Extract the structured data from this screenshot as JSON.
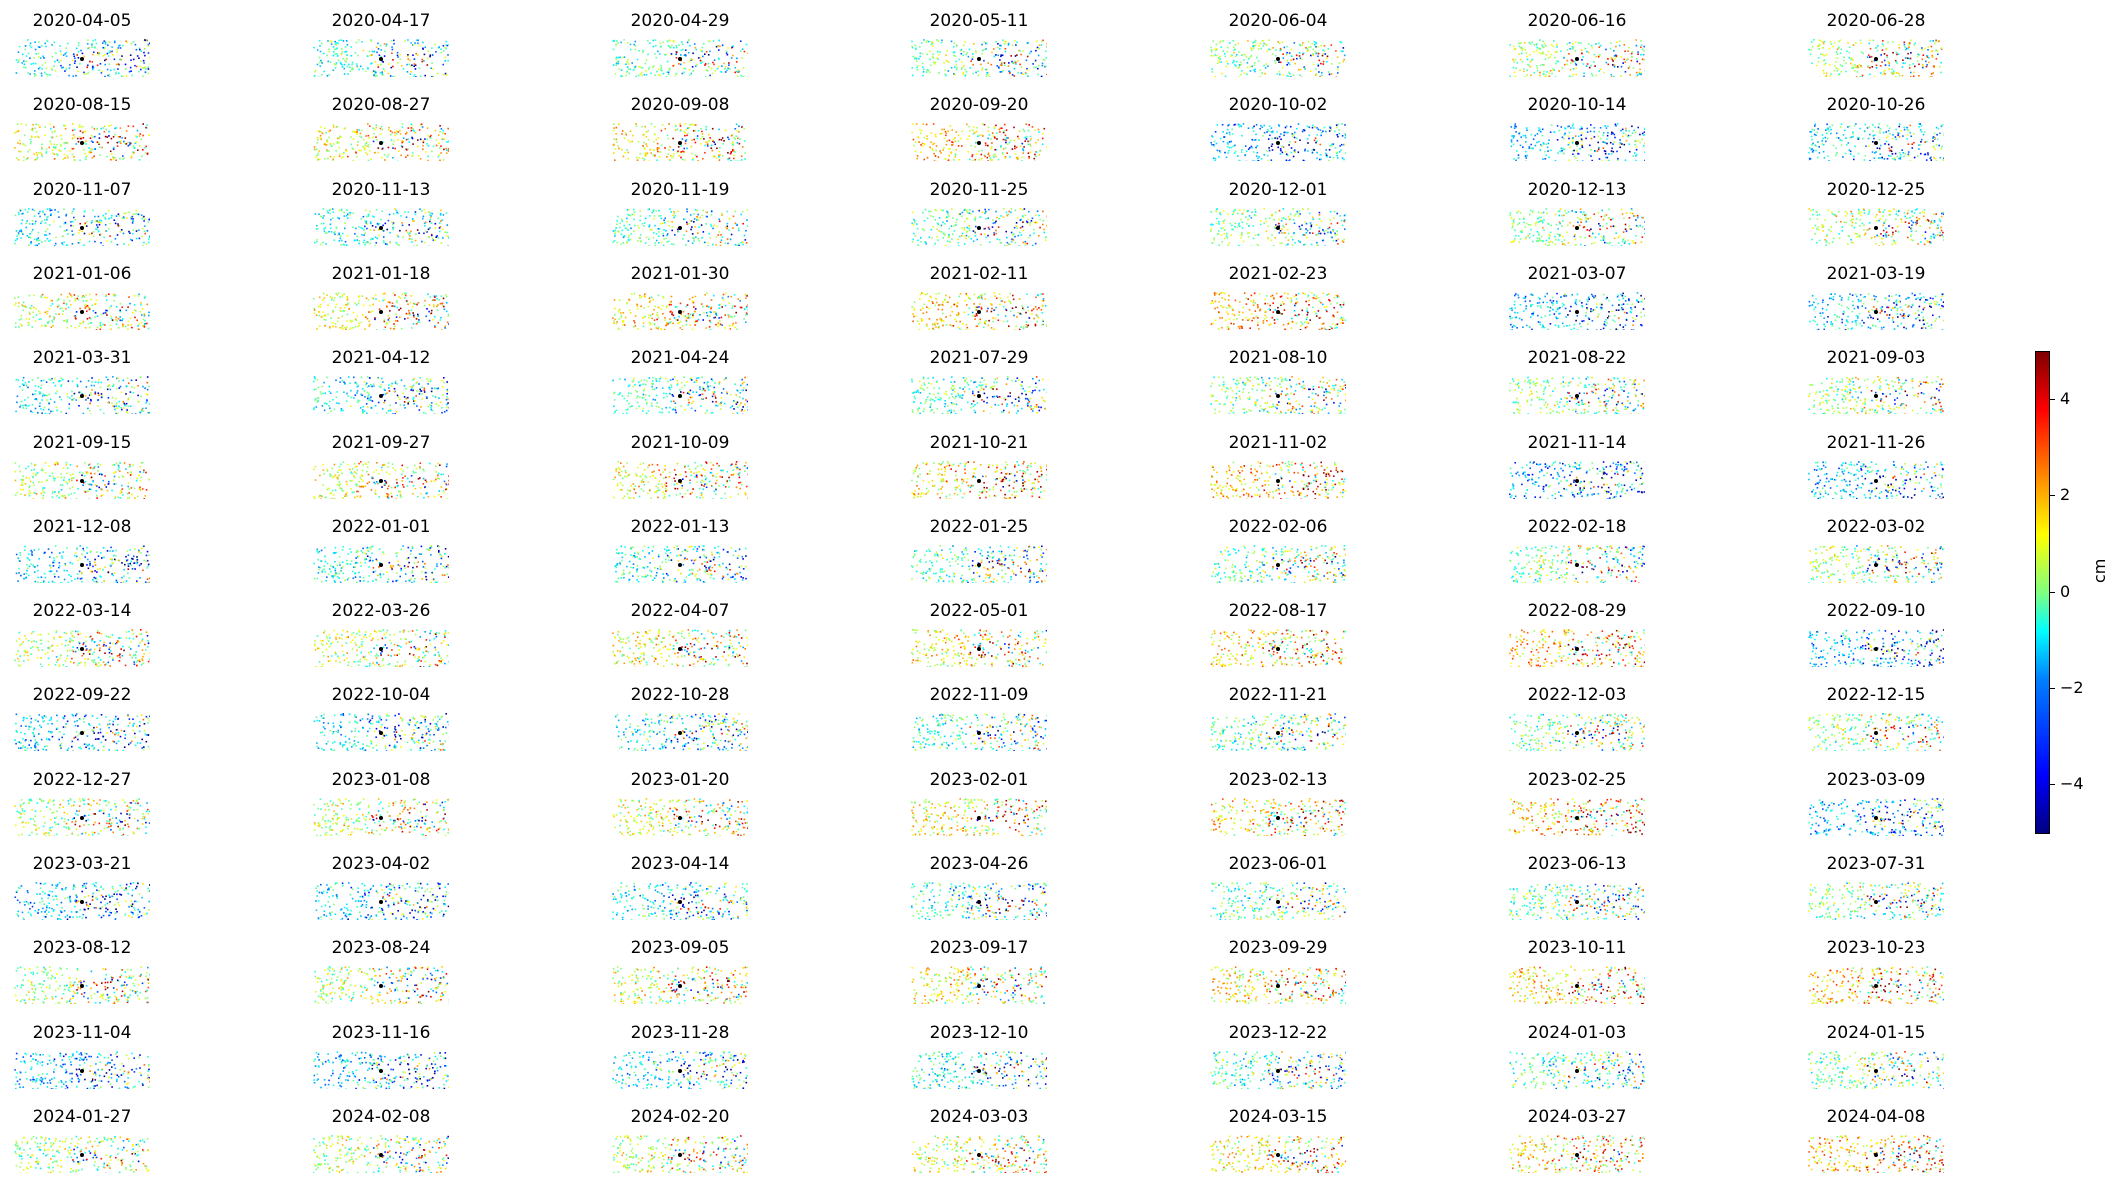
{
  "chart_data": {
    "type": "scatter",
    "description_grid": "small multiples of displacement maps, 7 columns x 14 rows",
    "dates": [
      "2020-04-05",
      "2020-04-17",
      "2020-04-29",
      "2020-05-11",
      "2020-06-04",
      "2020-06-16",
      "2020-06-28",
      "2020-08-15",
      "2020-08-27",
      "2020-09-08",
      "2020-09-20",
      "2020-10-02",
      "2020-10-14",
      "2020-10-26",
      "2020-11-07",
      "2020-11-13",
      "2020-11-19",
      "2020-11-25",
      "2020-12-01",
      "2020-12-13",
      "2020-12-25",
      "2021-01-06",
      "2021-01-18",
      "2021-01-30",
      "2021-02-11",
      "2021-02-23",
      "2021-03-07",
      "2021-03-19",
      "2021-03-31",
      "2021-04-12",
      "2021-04-24",
      "2021-07-29",
      "2021-08-10",
      "2021-08-22",
      "2021-09-03",
      "2021-09-15",
      "2021-09-27",
      "2021-10-09",
      "2021-10-21",
      "2021-11-02",
      "2021-11-14",
      "2021-11-26",
      "2021-12-08",
      "2022-01-01",
      "2022-01-13",
      "2022-01-25",
      "2022-02-06",
      "2022-02-18",
      "2022-03-02",
      "2022-03-14",
      "2022-03-26",
      "2022-04-07",
      "2022-05-01",
      "2022-08-17",
      "2022-08-29",
      "2022-09-10",
      "2022-09-22",
      "2022-10-04",
      "2022-10-28",
      "2022-11-09",
      "2022-11-21",
      "2022-12-03",
      "2022-12-15",
      "2022-12-27",
      "2023-01-08",
      "2023-01-20",
      "2023-02-01",
      "2023-02-13",
      "2023-02-25",
      "2023-03-09",
      "2023-03-21",
      "2023-04-02",
      "2023-04-14",
      "2023-04-26",
      "2023-06-01",
      "2023-06-13",
      "2023-07-31",
      "2023-08-12",
      "2023-08-24",
      "2023-09-05",
      "2023-09-17",
      "2023-09-29",
      "2023-10-11",
      "2023-10-23",
      "2023-11-04",
      "2023-11-16",
      "2023-11-28",
      "2023-12-10",
      "2023-12-22",
      "2024-01-03",
      "2024-01-15",
      "2024-01-27",
      "2024-02-08",
      "2024-02-20",
      "2024-03-03",
      "2024-03-15",
      "2024-03-27",
      "2024-04-08"
    ],
    "colorbar": {
      "label": "cm",
      "range": [
        -5,
        5
      ],
      "ticks": [
        "−4",
        "−2",
        "0",
        "2",
        "4"
      ],
      "tick_values": [
        -4,
        -2,
        0,
        2,
        4
      ],
      "colormap": "jet"
    }
  }
}
